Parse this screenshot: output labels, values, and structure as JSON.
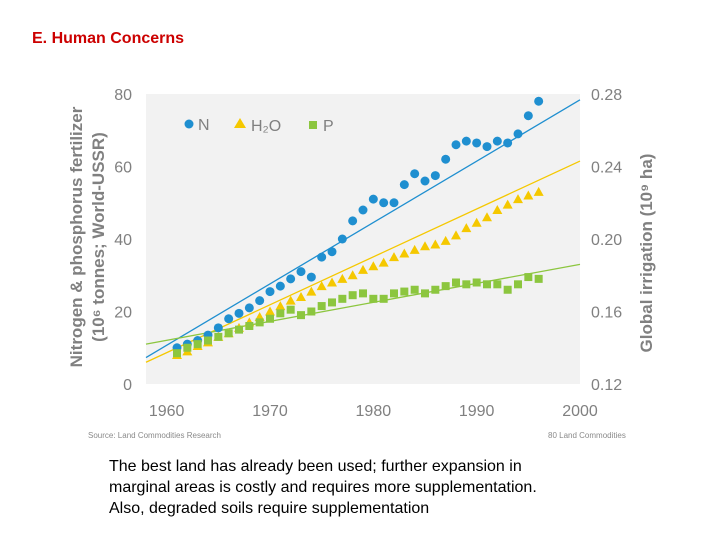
{
  "slide": {
    "title": "E. Human Concerns",
    "caption_lines": [
      "The best land has already been used; further expansion in",
      "marginal areas is costly and requires more supplementation.",
      "Also, degraded soils require supplementation"
    ]
  },
  "colors": {
    "N": "#1f8fd0",
    "H2O": "#f5c800",
    "P": "#8cc63f",
    "axis_text": "#808080",
    "plot_bg": "#f2f2f2"
  },
  "chart_data": {
    "type": "scatter",
    "title": "",
    "xlabel": "",
    "ylabel": "Nitrogen & phosphorus fertilizer (10⁶ tonnes; World-USSR)",
    "ylabel_lines": [
      "Nitrogen & phosphorus fertilizer",
      "(10⁶ tonnes; World-USSR)"
    ],
    "y2label": "Global irrigation (10⁹ ha)",
    "xlim": [
      1958,
      2000
    ],
    "ylim": [
      0,
      80
    ],
    "y2lim": [
      0.12,
      0.28
    ],
    "x_ticks": [
      1960,
      1970,
      1980,
      1990,
      2000
    ],
    "y_ticks": [
      0,
      20,
      40,
      60,
      80
    ],
    "y2_ticks": [
      "0.12",
      "0.16",
      "0.20",
      "0.24",
      "0.28"
    ],
    "legend_position": "top-left",
    "source_left": "Source: Land Commodities Research",
    "source_right": "80 Land Commodities",
    "series": [
      {
        "name": "N",
        "label": "N",
        "marker": "circle",
        "color_key": "N",
        "x": [
          1961,
          1962,
          1963,
          1964,
          1965,
          1966,
          1967,
          1968,
          1969,
          1970,
          1971,
          1972,
          1973,
          1974,
          1975,
          1976,
          1977,
          1978,
          1979,
          1980,
          1981,
          1982,
          1983,
          1984,
          1985,
          1986,
          1987,
          1988,
          1989,
          1990,
          1991,
          1992,
          1993,
          1994,
          1995,
          1996
        ],
        "y": [
          10,
          11,
          12,
          13.5,
          15.5,
          18,
          19.5,
          21,
          23,
          25.5,
          27,
          29,
          31,
          29.5,
          35,
          36.5,
          40,
          45,
          48,
          51,
          50,
          50,
          55,
          58,
          56,
          57.5,
          62,
          66,
          67,
          66.5,
          65.5,
          67,
          66.5,
          69,
          74,
          78
        ],
        "trend": [
          [
            1958,
            7.3
          ],
          [
            2000,
            78.4
          ]
        ]
      },
      {
        "name": "H2O",
        "label": "H₂O",
        "marker": "triangle",
        "color_key": "H2O",
        "axis": "right",
        "x": [
          1961,
          1962,
          1963,
          1964,
          1965,
          1966,
          1967,
          1968,
          1969,
          1970,
          1971,
          1972,
          1973,
          1974,
          1975,
          1976,
          1977,
          1978,
          1979,
          1980,
          1981,
          1982,
          1983,
          1984,
          1985,
          1986,
          1987,
          1988,
          1989,
          1990,
          1991,
          1992,
          1993,
          1994,
          1995,
          1996
        ],
        "y": [
          0.136,
          0.138,
          0.141,
          0.143,
          0.146,
          0.148,
          0.151,
          0.154,
          0.157,
          0.16,
          0.163,
          0.166,
          0.168,
          0.171,
          0.174,
          0.176,
          0.178,
          0.18,
          0.183,
          0.185,
          0.187,
          0.19,
          0.192,
          0.194,
          0.196,
          0.197,
          0.199,
          0.202,
          0.206,
          0.209,
          0.212,
          0.216,
          0.219,
          0.222,
          0.224,
          0.226
        ],
        "trend": [
          [
            1958,
            0.132
          ],
          [
            2000,
            0.243
          ]
        ]
      },
      {
        "name": "P",
        "label": "P",
        "marker": "square",
        "color_key": "P",
        "x": [
          1961,
          1962,
          1963,
          1964,
          1965,
          1966,
          1967,
          1968,
          1969,
          1970,
          1971,
          1972,
          1973,
          1974,
          1975,
          1976,
          1977,
          1978,
          1979,
          1980,
          1981,
          1982,
          1983,
          1984,
          1985,
          1986,
          1987,
          1988,
          1989,
          1990,
          1991,
          1992,
          1993,
          1994,
          1995,
          1996
        ],
        "y": [
          8.5,
          10,
          11,
          12,
          13,
          14,
          15,
          16,
          17,
          18,
          19.5,
          20.5,
          19,
          20,
          21.5,
          22.5,
          23.5,
          24.5,
          25,
          23.5,
          23.5,
          25,
          25.5,
          26,
          25,
          26,
          27,
          28,
          27.5,
          28,
          27.5,
          27.5,
          26,
          27.5,
          29.5,
          29
        ],
        "trend": [
          [
            1958,
            11
          ],
          [
            2000,
            33
          ]
        ]
      }
    ]
  }
}
